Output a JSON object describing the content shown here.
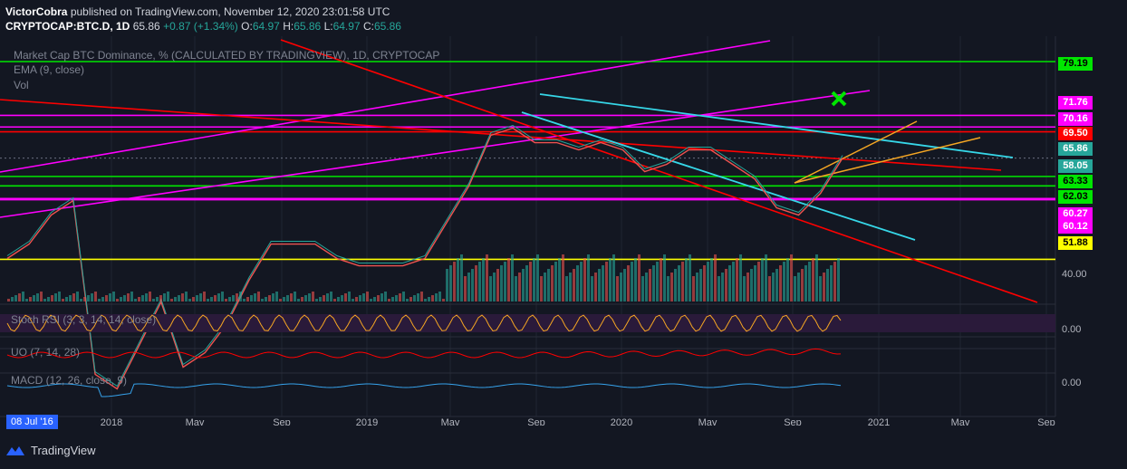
{
  "header": {
    "author": "VictorCobra",
    "published_text": "published on TradingView.com, November 12, 2020 23:01:58 UTC",
    "symbol": "CRYPTOCAP:BTC.D, 1D",
    "price": "65.86",
    "change": "+0.87 (+1.34%)",
    "ohlc": {
      "o_label": "O:",
      "o": "64.97",
      "h_label": "H:",
      "h": "65.86",
      "l_label": "L:",
      "l": "64.97",
      "c_label": "C:",
      "c": "65.86"
    }
  },
  "legend": {
    "title": "Market Cap BTC Dominance, % (CALCULATED BY TRADINGVIEW), 1D, CRYPTOCAP",
    "ema": "EMA (9, close)",
    "vol": "Vol",
    "stoch": "Stoch RSI (3, 3, 14, 14, close)",
    "uo": "UO (7, 14, 28)",
    "macd": "MACD (12, 26, close, 9)"
  },
  "price_tags": [
    {
      "label": "79.19",
      "bg": "#00e600",
      "fg": "#000000",
      "y": 79.19
    },
    {
      "label": "71.76",
      "bg": "#ff00ff",
      "fg": "#ffffff",
      "y": 71.76
    },
    {
      "label": "70.16",
      "bg": "#ff00ff",
      "fg": "#ffffff",
      "y": 70.16
    },
    {
      "label": "69.50",
      "bg": "#ff0000",
      "fg": "#ffffff",
      "y": 69.5
    },
    {
      "label": "65.86",
      "bg": "#26a69a",
      "fg": "#ffffff",
      "y": 65.86
    },
    {
      "label": "58.05",
      "bg": "#26a69a",
      "fg": "#ffffff",
      "y": 58.05
    },
    {
      "label": "63.33",
      "bg": "#00e600",
      "fg": "#000000",
      "y": 63.33
    },
    {
      "label": "62.03",
      "bg": "#00e600",
      "fg": "#000000",
      "y": 62.03
    },
    {
      "label": "60.27",
      "bg": "#ff00ff",
      "fg": "#ffffff",
      "y": 60.27
    },
    {
      "label": "60.12",
      "bg": "#ff00ff",
      "fg": "#ffffff",
      "y": 60.12
    },
    {
      "label": "51.88",
      "bg": "#ffff00",
      "fg": "#000000",
      "y": 51.88
    }
  ],
  "y_axis_ticks": {
    "main": "40.00",
    "stoch": "0.00",
    "macd": "0.00"
  },
  "x_axis_labels": [
    "2018",
    "May",
    "Sep",
    "2019",
    "May",
    "Sep",
    "2020",
    "May",
    "Sep",
    "2021",
    "May",
    "Sep"
  ],
  "date_badge": "08 Jul '16",
  "footer": {
    "brand": "TradingView"
  },
  "colors": {
    "bg": "#131722",
    "up": "#26a69a",
    "down": "#ef5350",
    "magenta": "#ff00ff",
    "red": "#ff0000",
    "green": "#00e600",
    "yellow": "#ffff00",
    "cyan": "#36d7e8",
    "orange": "#f5a623"
  },
  "chart_data": {
    "type": "line",
    "title": "Market Cap BTC Dominance, % (CALCULATED BY TRADINGVIEW), 1D, CRYPTOCAP",
    "series": [
      {
        "name": "BTC.D",
        "x": [
          "2017-07",
          "2017-09",
          "2017-11",
          "2017-12",
          "2018-01",
          "2018-02",
          "2018-03",
          "2018-04",
          "2018-05",
          "2018-06",
          "2018-07",
          "2018-08",
          "2018-09",
          "2018-10",
          "2018-11",
          "2018-12",
          "2019-01",
          "2019-02",
          "2019-03",
          "2019-04",
          "2019-05",
          "2019-06",
          "2019-07",
          "2019-08",
          "2019-09",
          "2019-10",
          "2019-11",
          "2019-12",
          "2020-01",
          "2020-02",
          "2020-03",
          "2020-04",
          "2020-05",
          "2020-06",
          "2020-07",
          "2020-08",
          "2020-09",
          "2020-10",
          "2020-11"
        ],
        "values": [
          52,
          54,
          58,
          60,
          36,
          34,
          40,
          46,
          37,
          39,
          43,
          49,
          54,
          54,
          54,
          52,
          51,
          51,
          51,
          52,
          57,
          62,
          69,
          70,
          68,
          68,
          67,
          68,
          67,
          64,
          65,
          67,
          67,
          65,
          63,
          59,
          58,
          61,
          65.86
        ]
      }
    ],
    "horizontal_levels": [
      79.19,
      71.76,
      70.16,
      69.5,
      65.86,
      63.33,
      62.03,
      60.27,
      60.12,
      58.05,
      51.88
    ],
    "y_tick": 40,
    "annotations": [
      "green X marker near 71.76 level, Oct 2020"
    ]
  }
}
